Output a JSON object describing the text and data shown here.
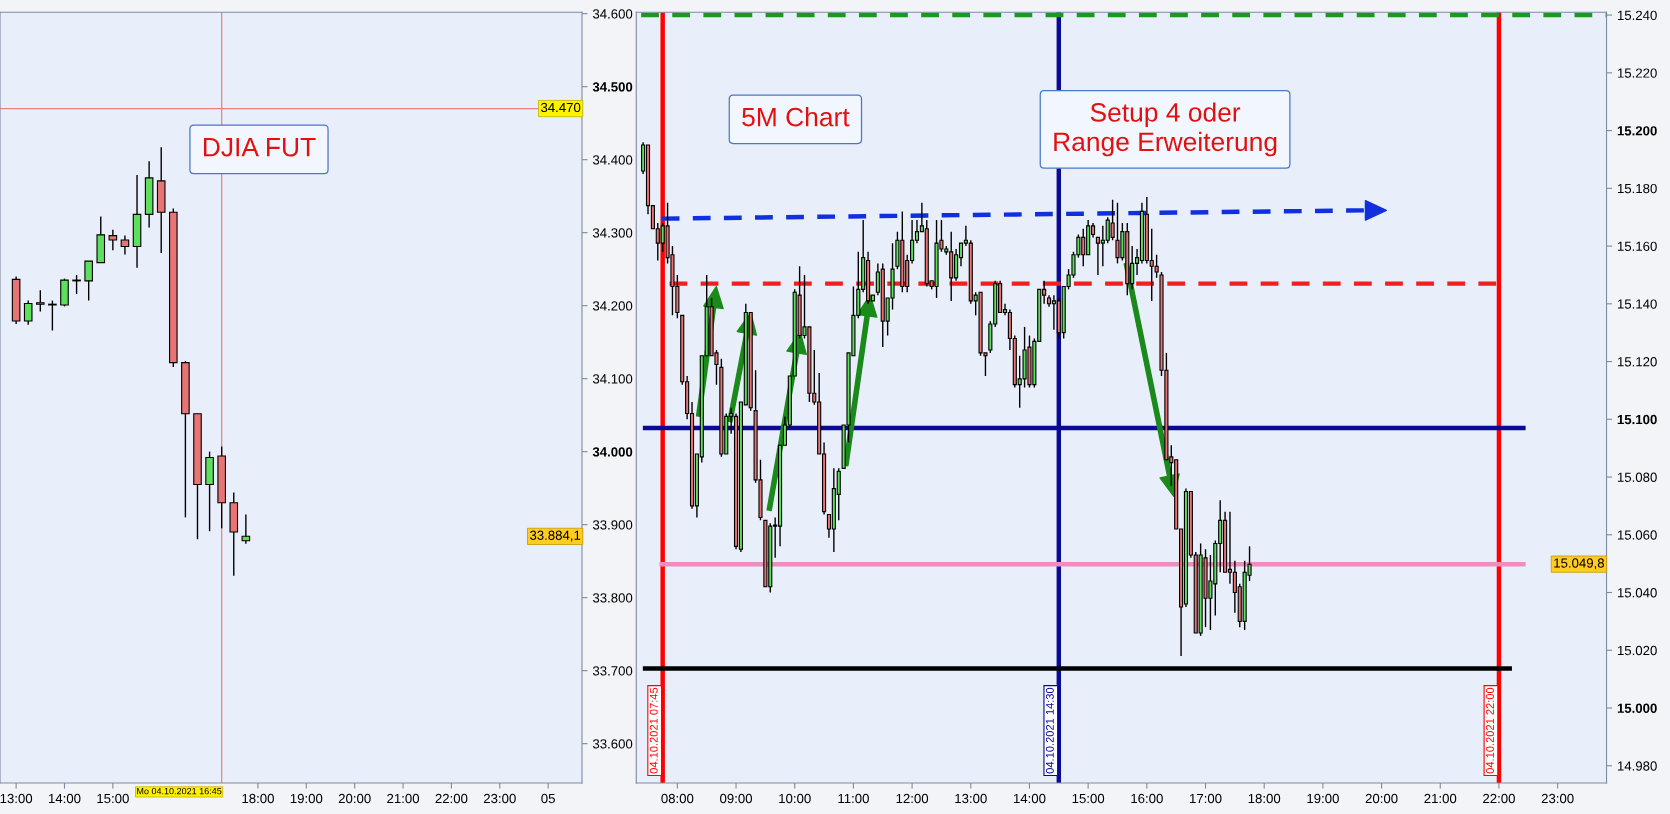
{
  "chart_data": [
    {
      "type": "candlestick",
      "x": [
        "2021-10-04T13:00",
        "2021-10-04T13:15",
        "2021-10-04T13:30",
        "2021-10-04T13:45",
        "2021-10-04T14:00",
        "2021-10-04T14:15",
        "2021-10-04T14:30",
        "2021-10-04T14:45",
        "2021-10-04T15:00",
        "2021-10-04T15:15",
        "2021-10-04T15:30",
        "2021-10-04T15:45",
        "2021-10-04T16:00",
        "2021-10-04T16:15",
        "2021-10-04T16:30",
        "2021-10-04T16:45",
        "2021-10-04T17:00",
        "2021-10-04T17:15",
        "2021-10-04T17:30",
        "2021-10-04T17:45"
      ],
      "ohlc": [
        [
          34236,
          34240,
          34175,
          34179
        ],
        [
          34179,
          34207,
          34174,
          34203
        ],
        [
          34204,
          34221,
          34192,
          34202
        ],
        [
          34202,
          34207,
          34166,
          34201
        ],
        [
          34201,
          34237,
          34199,
          34235
        ],
        [
          34234,
          34242,
          34216,
          34235
        ],
        [
          34234,
          34261,
          34207,
          34261
        ],
        [
          34259,
          34322,
          34259,
          34297
        ],
        [
          34296,
          34304,
          34276,
          34290
        ],
        [
          34290,
          34296,
          34270,
          34281
        ],
        [
          34281,
          34379,
          34252,
          34325
        ],
        [
          34325,
          34398,
          34307,
          34375
        ],
        [
          34371,
          34417,
          34272,
          34328
        ],
        [
          34328,
          34333,
          34116,
          34122
        ],
        [
          34122,
          34124,
          33910,
          34052
        ],
        [
          34052,
          34052,
          33880,
          33955
        ],
        [
          33955,
          34000,
          33891,
          33992
        ],
        [
          33994,
          34007,
          33895,
          33930
        ],
        [
          33930,
          33944,
          33830,
          33890
        ],
        [
          33878,
          33914,
          33874,
          33884.1
        ]
      ],
      "xlim": [
        "2021-10-04T12:40",
        "2021-10-05T00:42"
      ],
      "xticks": [
        {
          "value": "2021-10-04T13:00",
          "label": "13:00"
        },
        {
          "value": "2021-10-04T14:00",
          "label": "14:00"
        },
        {
          "value": "2021-10-04T15:00",
          "label": "15:00"
        },
        {
          "value": "2021-10-04T18:00",
          "label": "18:00"
        },
        {
          "value": "2021-10-04T19:00",
          "label": "19:00"
        },
        {
          "value": "2021-10-04T20:00",
          "label": "20:00"
        },
        {
          "value": "2021-10-04T21:00",
          "label": "21:00"
        },
        {
          "value": "2021-10-04T22:00",
          "label": "22:00"
        },
        {
          "value": "2021-10-04T23:00",
          "label": "23:00"
        },
        {
          "value": "2021-10-05T00:00",
          "label": "05"
        }
      ],
      "ylim": [
        33546,
        34602
      ],
      "yticks": [
        {
          "value": 33600,
          "label": "33.600"
        },
        {
          "value": 33700,
          "label": "33.700"
        },
        {
          "value": 33800,
          "label": "33.800"
        },
        {
          "value": 33900,
          "label": "33.900"
        },
        {
          "value": 34000,
          "label": "34.000"
        },
        {
          "value": 34100,
          "label": "34.100"
        },
        {
          "value": 34200,
          "label": "34.200"
        },
        {
          "value": 34300,
          "label": "34.300"
        },
        {
          "value": 34400,
          "label": "34.400"
        },
        {
          "value": 34500,
          "label": "34.500"
        },
        {
          "value": 34600,
          "label": "34.600"
        }
      ],
      "ref_lines": [
        {
          "axis": "x",
          "value": "2021-10-04T17:15",
          "color": "#f08080"
        },
        {
          "axis": "y",
          "value": 34470,
          "label": "34.470",
          "color": "#f08080"
        }
      ],
      "annotations": [
        "DJIA FUT",
        "Mo 04.10.2021 16:45",
        "33.884,1"
      ],
      "grid": false,
      "legend": false
    },
    {
      "type": "candlestick",
      "x": [
        "2021-10-04T07:25",
        "2021-10-04T07:30",
        "2021-10-04T07:35",
        "2021-10-04T07:40",
        "2021-10-04T07:45",
        "2021-10-04T07:50",
        "2021-10-04T07:55",
        "2021-10-04T08:00",
        "2021-10-04T08:05",
        "2021-10-04T08:10",
        "2021-10-04T08:15",
        "2021-10-04T08:20",
        "2021-10-04T08:25",
        "2021-10-04T08:30",
        "2021-10-04T08:35",
        "2021-10-04T08:40",
        "2021-10-04T08:45",
        "2021-10-04T08:50",
        "2021-10-04T08:55",
        "2021-10-04T09:00",
        "2021-10-04T09:05",
        "2021-10-04T09:10",
        "2021-10-04T09:15",
        "2021-10-04T09:20",
        "2021-10-04T09:25",
        "2021-10-04T09:30",
        "2021-10-04T09:35",
        "2021-10-04T09:40",
        "2021-10-04T09:45",
        "2021-10-04T09:50",
        "2021-10-04T09:55",
        "2021-10-04T10:00",
        "2021-10-04T10:05",
        "2021-10-04T10:10",
        "2021-10-04T10:15",
        "2021-10-04T10:20",
        "2021-10-04T10:25",
        "2021-10-04T10:30",
        "2021-10-04T10:35",
        "2021-10-04T10:40",
        "2021-10-04T10:45",
        "2021-10-04T10:50",
        "2021-10-04T10:55",
        "2021-10-04T11:00",
        "2021-10-04T11:05",
        "2021-10-04T11:10",
        "2021-10-04T11:15",
        "2021-10-04T11:20",
        "2021-10-04T11:25",
        "2021-10-04T11:30",
        "2021-10-04T11:35",
        "2021-10-04T11:40",
        "2021-10-04T11:45",
        "2021-10-04T11:50",
        "2021-10-04T11:55",
        "2021-10-04T12:00",
        "2021-10-04T12:05",
        "2021-10-04T12:10",
        "2021-10-04T12:15",
        "2021-10-04T12:20",
        "2021-10-04T12:25",
        "2021-10-04T12:30",
        "2021-10-04T12:35",
        "2021-10-04T12:40",
        "2021-10-04T12:45",
        "2021-10-04T12:50",
        "2021-10-04T12:55",
        "2021-10-04T13:00",
        "2021-10-04T13:05",
        "2021-10-04T13:10",
        "2021-10-04T13:15",
        "2021-10-04T13:20",
        "2021-10-04T13:25",
        "2021-10-04T13:30",
        "2021-10-04T13:35",
        "2021-10-04T13:40",
        "2021-10-04T13:45",
        "2021-10-04T13:50",
        "2021-10-04T13:55",
        "2021-10-04T14:00",
        "2021-10-04T14:05",
        "2021-10-04T14:10",
        "2021-10-04T14:15",
        "2021-10-04T14:20",
        "2021-10-04T14:25",
        "2021-10-04T14:30",
        "2021-10-04T14:35",
        "2021-10-04T14:40",
        "2021-10-04T14:45",
        "2021-10-04T14:50",
        "2021-10-04T14:55",
        "2021-10-04T15:00",
        "2021-10-04T15:05",
        "2021-10-04T15:10",
        "2021-10-04T15:15",
        "2021-10-04T15:20",
        "2021-10-04T15:25",
        "2021-10-04T15:30",
        "2021-10-04T15:35",
        "2021-10-04T15:40",
        "2021-10-04T15:45",
        "2021-10-04T15:50",
        "2021-10-04T15:55",
        "2021-10-04T16:00",
        "2021-10-04T16:05",
        "2021-10-04T16:10",
        "2021-10-04T16:15",
        "2021-10-04T16:20",
        "2021-10-04T16:25",
        "2021-10-04T16:30",
        "2021-10-04T16:35",
        "2021-10-04T16:40",
        "2021-10-04T16:45",
        "2021-10-04T16:50",
        "2021-10-04T16:55",
        "2021-10-04T17:00",
        "2021-10-04T17:05",
        "2021-10-04T17:10",
        "2021-10-04T17:15",
        "2021-10-04T17:20",
        "2021-10-04T17:25",
        "2021-10-04T17:30",
        "2021-10-04T17:35",
        "2021-10-04T17:40",
        "2021-10-04T17:45"
      ],
      "ohlc": [
        [
          15186,
          15196,
          15185,
          15195
        ],
        [
          15195,
          15195,
          15171,
          15174
        ],
        [
          15174,
          15174,
          15166,
          15166
        ],
        [
          15166,
          15168,
          15155,
          15161
        ],
        [
          15161,
          15168,
          15158,
          15167
        ],
        [
          15167,
          15175,
          15154,
          15156
        ],
        [
          15157,
          15160,
          15136,
          15146
        ],
        [
          15146,
          15150,
          15135,
          15137
        ],
        [
          15136,
          15136,
          15112,
          15113
        ],
        [
          15113,
          15115,
          15100,
          15102
        ],
        [
          15102,
          15106,
          15069,
          15070
        ],
        [
          15070,
          15088,
          15066,
          15088
        ],
        [
          15087,
          15122,
          15085,
          15122
        ],
        [
          15122,
          15150,
          15122,
          15139
        ],
        [
          15139,
          15142,
          15122,
          15122
        ],
        [
          15123,
          15124,
          15112,
          15119
        ],
        [
          15118,
          15121,
          15087,
          15088
        ],
        [
          15088,
          15102,
          15088,
          15101
        ],
        [
          15101,
          15104,
          15095,
          15102
        ],
        [
          15101,
          15102,
          15055,
          15056
        ],
        [
          15055,
          15106,
          15054,
          15106
        ],
        [
          15105,
          15140,
          15105,
          15137
        ],
        [
          15137,
          15137,
          15103,
          15104
        ],
        [
          15103,
          15117,
          15078,
          15079
        ],
        [
          15079,
          15086,
          15065,
          15066
        ],
        [
          15065,
          15065,
          15042,
          15042
        ],
        [
          15042,
          15064,
          15040,
          15063
        ],
        [
          15063,
          15066,
          15052,
          15063
        ],
        [
          15063,
          15091,
          15056,
          15091
        ],
        [
          15091,
          15101,
          15091,
          15098
        ],
        [
          15098,
          15115,
          15097,
          15115
        ],
        [
          15115,
          15145,
          15115,
          15144
        ],
        [
          15143,
          15153,
          15128,
          15129
        ],
        [
          15129,
          15150,
          15128,
          15132
        ],
        [
          15132,
          15132,
          15106,
          15109
        ],
        [
          15109,
          15124,
          15105,
          15106
        ],
        [
          15106,
          15116,
          15088,
          15088
        ],
        [
          15088,
          15092,
          15067,
          15068
        ],
        [
          15067,
          15067,
          15059,
          15062
        ],
        [
          15062,
          15083,
          15054,
          15076
        ],
        [
          15074,
          15083,
          15065,
          15082
        ],
        [
          15083,
          15098,
          15083,
          15098
        ],
        [
          15098,
          15123,
          15092,
          15123
        ],
        [
          15122,
          15146,
          15122,
          15136
        ],
        [
          15136,
          15158,
          15135,
          15145
        ],
        [
          15145,
          15169,
          15144,
          15156
        ],
        [
          15155,
          15158,
          15140,
          15141
        ],
        [
          15141,
          15143,
          15141,
          15143
        ],
        [
          15144,
          15154,
          15143,
          15151
        ],
        [
          15152,
          15154,
          15125,
          15134
        ],
        [
          15134,
          15142,
          15129,
          15142
        ],
        [
          15142,
          15161,
          15138,
          15152
        ],
        [
          15153,
          15165,
          15152,
          15162
        ],
        [
          15162,
          15172,
          15144,
          15146
        ],
        [
          15155,
          15157,
          15144,
          15146
        ],
        [
          15155,
          15169,
          15154,
          15162
        ],
        [
          15162,
          15169,
          15161,
          15165
        ],
        [
          15165,
          15175,
          15165,
          15167
        ],
        [
          15166,
          15169,
          15146,
          15147
        ],
        [
          15148,
          15148,
          15145,
          15146
        ],
        [
          15146,
          15169,
          15142,
          15161
        ],
        [
          15162,
          15169,
          15158,
          15159
        ],
        [
          15158,
          15160,
          15157,
          15159
        ],
        [
          15158,
          15165,
          15141,
          15149
        ],
        [
          15149,
          15159,
          15148,
          15157
        ],
        [
          15156,
          15161,
          15153,
          15161
        ],
        [
          15161,
          15167,
          15160,
          15162
        ],
        [
          15161,
          15162,
          15140,
          15141
        ],
        [
          15141,
          15144,
          15136,
          15143
        ],
        [
          15144,
          15144,
          15122,
          15123
        ],
        [
          15123,
          15123,
          15115,
          15122
        ],
        [
          15124,
          15134,
          15123,
          15133
        ],
        [
          15133,
          15148,
          15132,
          15147
        ],
        [
          15147,
          15148,
          15137,
          15137
        ],
        [
          15137,
          15140,
          15136,
          15138
        ],
        [
          15137,
          15138,
          15124,
          15128
        ],
        [
          15128,
          15129,
          15111,
          15112
        ],
        [
          15112,
          15122,
          15104,
          15114
        ],
        [
          15114,
          15132,
          15111,
          15124
        ],
        [
          15125,
          15129,
          15111,
          15112
        ],
        [
          15112,
          15128,
          15111,
          15127
        ],
        [
          15127,
          15145,
          15127,
          15145
        ],
        [
          15145,
          15148,
          15140,
          15143
        ],
        [
          15142,
          15143,
          15139,
          15140
        ],
        [
          15140,
          15143,
          15131,
          15141
        ],
        [
          15141,
          15142,
          15128,
          15130
        ],
        [
          15130,
          15146,
          15128,
          15146
        ],
        [
          15146,
          15152,
          15145,
          15150
        ],
        [
          15150,
          15158,
          15149,
          15157
        ],
        [
          15157,
          15164,
          15156,
          15163
        ],
        [
          15163,
          15166,
          15153,
          15157
        ],
        [
          15157,
          15169,
          15157,
          15167
        ],
        [
          15167,
          15168,
          15163,
          15164
        ],
        [
          15163,
          15163,
          15150,
          15161
        ],
        [
          15161,
          15167,
          15153,
          15162
        ],
        [
          15162,
          15170,
          15161,
          15169
        ],
        [
          15168,
          15176,
          15162,
          15163
        ],
        [
          15162,
          15175,
          15154,
          15156
        ],
        [
          15156,
          15168,
          15155,
          15165
        ],
        [
          15165,
          15168,
          15143,
          15147
        ],
        [
          15147,
          15160,
          15145,
          15154
        ],
        [
          15154,
          15159,
          15150,
          15156
        ],
        [
          15155,
          15175,
          15154,
          15172
        ],
        [
          15171,
          15177,
          15154,
          15155
        ],
        [
          15155,
          15166,
          15141,
          15153
        ],
        [
          15153,
          15157,
          15149,
          15151
        ],
        [
          15150,
          15151,
          15115,
          15117
        ],
        [
          15117,
          15123,
          15086,
          15086
        ],
        [
          15087,
          15091,
          15077,
          15085
        ],
        [
          15086,
          15086,
          15062,
          15062
        ],
        [
          15062,
          15062,
          15018,
          15035
        ],
        [
          15036,
          15076,
          15035,
          15075
        ],
        [
          15075,
          15075,
          15052,
          15053
        ],
        [
          15053,
          15054,
          15026,
          15026
        ],
        [
          15026,
          15057,
          15025,
          15053
        ],
        [
          15052,
          15055,
          15028,
          15038
        ],
        [
          15038,
          15053,
          15027,
          15044
        ],
        [
          15043,
          15058,
          15032,
          15057
        ],
        [
          15057,
          15072,
          15047,
          15065
        ],
        [
          15065,
          15068,
          15047,
          15047
        ],
        [
          15048,
          15068,
          15043,
          15047
        ],
        [
          15047,
          15051,
          15033,
          15040
        ],
        [
          15042,
          15043,
          15028,
          15030
        ],
        [
          15030,
          15051,
          15027,
          15047
        ],
        [
          15046,
          15056,
          15044,
          15049.8
        ]
      ],
      "series": [
        {
          "type": "line",
          "x": [
            "2021-10-04T07:23",
            "2021-10-04T23:50"
          ],
          "values": [
            15240,
            15240
          ],
          "color": "#1a9a1a",
          "line_style": "dashed"
        },
        {
          "type": "line",
          "x": [
            "2021-10-04T07:44",
            "2021-10-04T19:51"
          ],
          "values": [
            15169.5,
            15172.4
          ],
          "color": "#1030e0",
          "line_style": "dashed"
        },
        {
          "type": "line",
          "x": [
            "2021-10-04T07:52",
            "2021-10-04T22:07"
          ],
          "values": [
            15147,
            15147
          ],
          "color": "#ee2020",
          "line_style": "dashed"
        },
        {
          "type": "line",
          "x": [
            "2021-10-04T07:27",
            "2021-10-04T22:25"
          ],
          "values": [
            15097,
            15097
          ],
          "color": "#0a0a96",
          "line_style": "solid"
        },
        {
          "type": "line",
          "x": [
            "2021-10-04T07:44",
            "2021-10-04T22:25"
          ],
          "values": [
            15049.8,
            15049.8
          ],
          "color": "#f08cc0",
          "line_style": "solid"
        },
        {
          "type": "line",
          "x": [
            "2021-10-04T07:27",
            "2021-10-04T22:11"
          ],
          "values": [
            15013.7,
            15013.7
          ],
          "color": "#000000",
          "line_style": "solid"
        }
      ],
      "xlim": [
        "2021-10-04T07:18",
        "2021-10-04T23:50"
      ],
      "xticks": [
        {
          "value": "2021-10-04T08:00",
          "label": "08:00"
        },
        {
          "value": "2021-10-04T09:00",
          "label": "09:00"
        },
        {
          "value": "2021-10-04T10:00",
          "label": "10:00"
        },
        {
          "value": "2021-10-04T11:00",
          "label": "11:00"
        },
        {
          "value": "2021-10-04T12:00",
          "label": "12:00"
        },
        {
          "value": "2021-10-04T13:00",
          "label": "13:00"
        },
        {
          "value": "2021-10-04T14:00",
          "label": "14:00"
        },
        {
          "value": "2021-10-04T15:00",
          "label": "15:00"
        },
        {
          "value": "2021-10-04T16:00",
          "label": "16:00"
        },
        {
          "value": "2021-10-04T17:00",
          "label": "17:00"
        },
        {
          "value": "2021-10-04T18:00",
          "label": "18:00"
        },
        {
          "value": "2021-10-04T19:00",
          "label": "19:00"
        },
        {
          "value": "2021-10-04T20:00",
          "label": "20:00"
        },
        {
          "value": "2021-10-04T21:00",
          "label": "21:00"
        },
        {
          "value": "2021-10-04T22:00",
          "label": "22:00"
        },
        {
          "value": "2021-10-04T23:00",
          "label": "23:00"
        }
      ],
      "ylim": [
        14974,
        15241
      ],
      "yticks": [
        {
          "value": 14980,
          "label": "14.980"
        },
        {
          "value": 15000,
          "label": "15.000"
        },
        {
          "value": 15020,
          "label": "15.020"
        },
        {
          "value": 15040,
          "label": "15.040"
        },
        {
          "value": 15060,
          "label": "15.060"
        },
        {
          "value": 15080,
          "label": "15.080"
        },
        {
          "value": 15100,
          "label": "15.100"
        },
        {
          "value": 15120,
          "label": "15.120"
        },
        {
          "value": 15140,
          "label": "15.140"
        },
        {
          "value": 15160,
          "label": "15.160"
        },
        {
          "value": 15180,
          "label": "15.180"
        },
        {
          "value": 15200,
          "label": "15.200"
        },
        {
          "value": 15220,
          "label": "15.220"
        },
        {
          "value": 15240,
          "label": "15.240"
        }
      ],
      "ref_lines": [
        {
          "axis": "x",
          "value": "2021-10-04T07:45",
          "label": "04.10.2021 07:45",
          "color": "#ff0000"
        },
        {
          "axis": "x",
          "value": "2021-10-04T14:30",
          "label": "04.10.2021 14:30",
          "color": "#0a0a96"
        },
        {
          "axis": "x",
          "value": "2021-10-04T22:00",
          "label": "04.10.2021 22:00",
          "color": "#ff0000"
        }
      ],
      "annotations": [
        "5M Chart",
        "Setup 4 oder\nRange Erweiterung",
        "15.049,8"
      ],
      "grid": false,
      "legend": false
    }
  ]
}
